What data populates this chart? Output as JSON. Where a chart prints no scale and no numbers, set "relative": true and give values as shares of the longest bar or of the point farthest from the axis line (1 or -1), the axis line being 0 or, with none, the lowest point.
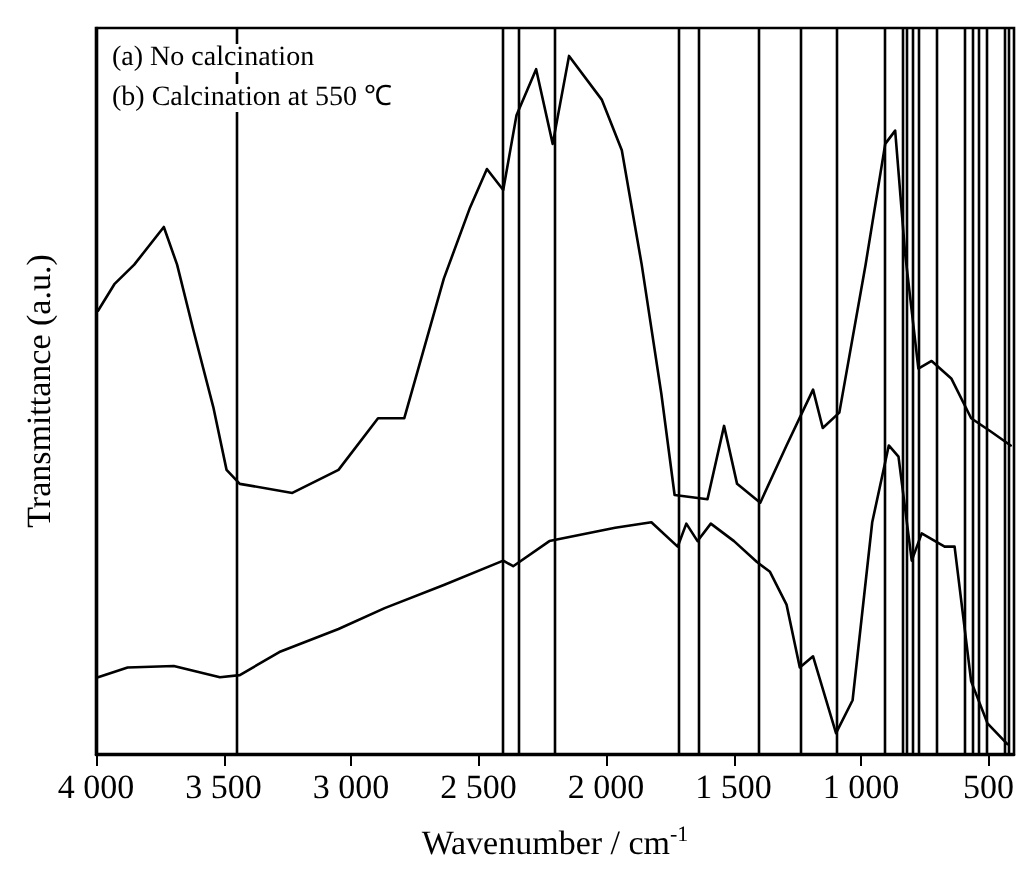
{
  "chart_data": {
    "type": "line",
    "relative": true,
    "xlabel": "Wavenumber / cm$^{-1}$",
    "ylabel": "Transmittance (a.u.)",
    "annotations": [
      "(a) No calcination",
      "(b) Calcination at 550 ℃"
    ],
    "xlim": [
      4000,
      400
    ],
    "xticks": [
      {
        "value": 4000,
        "label": "4 000"
      },
      {
        "value": 3500,
        "label": "3 500"
      },
      {
        "value": 3000,
        "label": "3 000"
      },
      {
        "value": 2500,
        "label": "2 500"
      },
      {
        "value": 2000,
        "label": "2 000"
      },
      {
        "value": 1500,
        "label": "1 500"
      },
      {
        "value": 1000,
        "label": "1 000"
      },
      500
    ],
    "grid": false,
    "marker": "none",
    "line_style": "solid",
    "series": [
      {
        "color": "#000000",
        "x": [
          3992,
          3928,
          3850,
          3734,
          3682,
          3618,
          3540,
          3488,
          3436,
          3230,
          3049,
          2894,
          2791,
          2636,
          2533,
          2467,
          2403,
          2351,
          2274,
          2209,
          2145,
          2016,
          1938,
          1860,
          1783,
          1731,
          1602,
          1537,
          1486,
          1395,
          1292,
          1188,
          1150,
          1085,
          982,
          905,
          866,
          827,
          775,
          723,
          646,
          568,
          491,
          413
        ],
        "values": [
          0.635,
          0.673,
          0.701,
          0.755,
          0.701,
          0.607,
          0.497,
          0.407,
          0.387,
          0.374,
          0.407,
          0.481,
          0.481,
          0.681,
          0.783,
          0.838,
          0.808,
          0.915,
          0.981,
          0.874,
          1,
          0.937,
          0.865,
          0.701,
          0.516,
          0.371,
          0.365,
          0.47,
          0.387,
          0.36,
          0.442,
          0.522,
          0.467,
          0.489,
          0.701,
          0.874,
          0.893,
          0.717,
          0.552,
          0.563,
          0.538,
          0.481,
          0.462,
          0.442
        ]
      },
      {
        "color": "#000000",
        "x": [
          3992,
          3876,
          3695,
          3514,
          3436,
          3281,
          3049,
          2868,
          2636,
          2403,
          2364,
          2222,
          1964,
          1822,
          1719,
          1685,
          1641,
          1589,
          1498,
          1408,
          1357,
          1292,
          1240,
          1188,
          1098,
          1033,
          956,
          891,
          853,
          801,
          762,
          672,
          633,
          568,
          504,
          426
        ],
        "values": [
          0.11,
          0.124,
          0.126,
          0.11,
          0.113,
          0.146,
          0.179,
          0.209,
          0.242,
          0.277,
          0.269,
          0.305,
          0.324,
          0.332,
          0.297,
          0.33,
          0.305,
          0.33,
          0.305,
          0.275,
          0.261,
          0.214,
          0.124,
          0.14,
          0.03,
          0.077,
          0.332,
          0.442,
          0.426,
          0.277,
          0.316,
          0.297,
          0.297,
          0.104,
          0.044,
          0.014
        ]
      }
    ],
    "ref_lines": [
      {
        "axis": "x",
        "value": 3450
      },
      {
        "axis": "x",
        "value": 2405
      },
      {
        "axis": "x",
        "value": 2340
      },
      {
        "axis": "x",
        "value": 2205
      },
      {
        "axis": "x",
        "value": 1715
      },
      {
        "axis": "x",
        "value": 1640
      },
      {
        "axis": "x",
        "value": 1405
      },
      {
        "axis": "x",
        "value": 1240
      },
      {
        "axis": "x",
        "value": 1100
      },
      {
        "axis": "x",
        "value": 910
      },
      {
        "axis": "x",
        "value": 840
      },
      {
        "axis": "x",
        "value": 820
      },
      {
        "axis": "x",
        "value": 800
      },
      {
        "axis": "x",
        "value": 775
      },
      {
        "axis": "x",
        "value": 705
      },
      {
        "axis": "x",
        "value": 595
      },
      {
        "axis": "x",
        "value": 565
      },
      {
        "axis": "x",
        "value": 540
      },
      {
        "axis": "x",
        "value": 505
      },
      {
        "axis": "x",
        "value": 440
      },
      {
        "axis": "x",
        "value": 420
      }
    ]
  }
}
